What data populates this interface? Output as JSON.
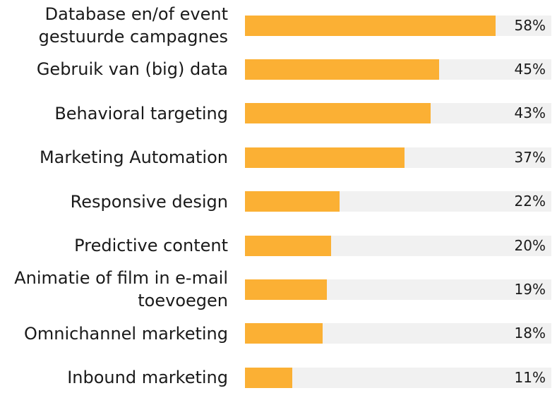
{
  "chart_data": {
    "type": "bar",
    "orientation": "horizontal",
    "categories": [
      [
        "Database en/of event",
        "gestuurde campagnes"
      ],
      [
        "Gebruik van (big) data"
      ],
      [
        "Behavioral targeting"
      ],
      [
        "Marketing Automation"
      ],
      [
        "Responsive design"
      ],
      [
        "Predictive content"
      ],
      [
        "Animatie of film in e-mail",
        "toevoegen"
      ],
      [
        "Omnichannel marketing"
      ],
      [
        "Inbound marketing"
      ]
    ],
    "values": [
      58,
      45,
      43,
      37,
      22,
      20,
      19,
      18,
      11
    ],
    "value_labels": [
      "58%",
      "45%",
      "43%",
      "37%",
      "22%",
      "20%",
      "19%",
      "18%",
      "11%"
    ],
    "xlim": [
      0,
      71
    ],
    "title": "",
    "xlabel": "",
    "ylabel": ""
  },
  "colors": {
    "bar": "#fbb034",
    "track": "#f1f1f1",
    "text": "#1a1a1a"
  }
}
